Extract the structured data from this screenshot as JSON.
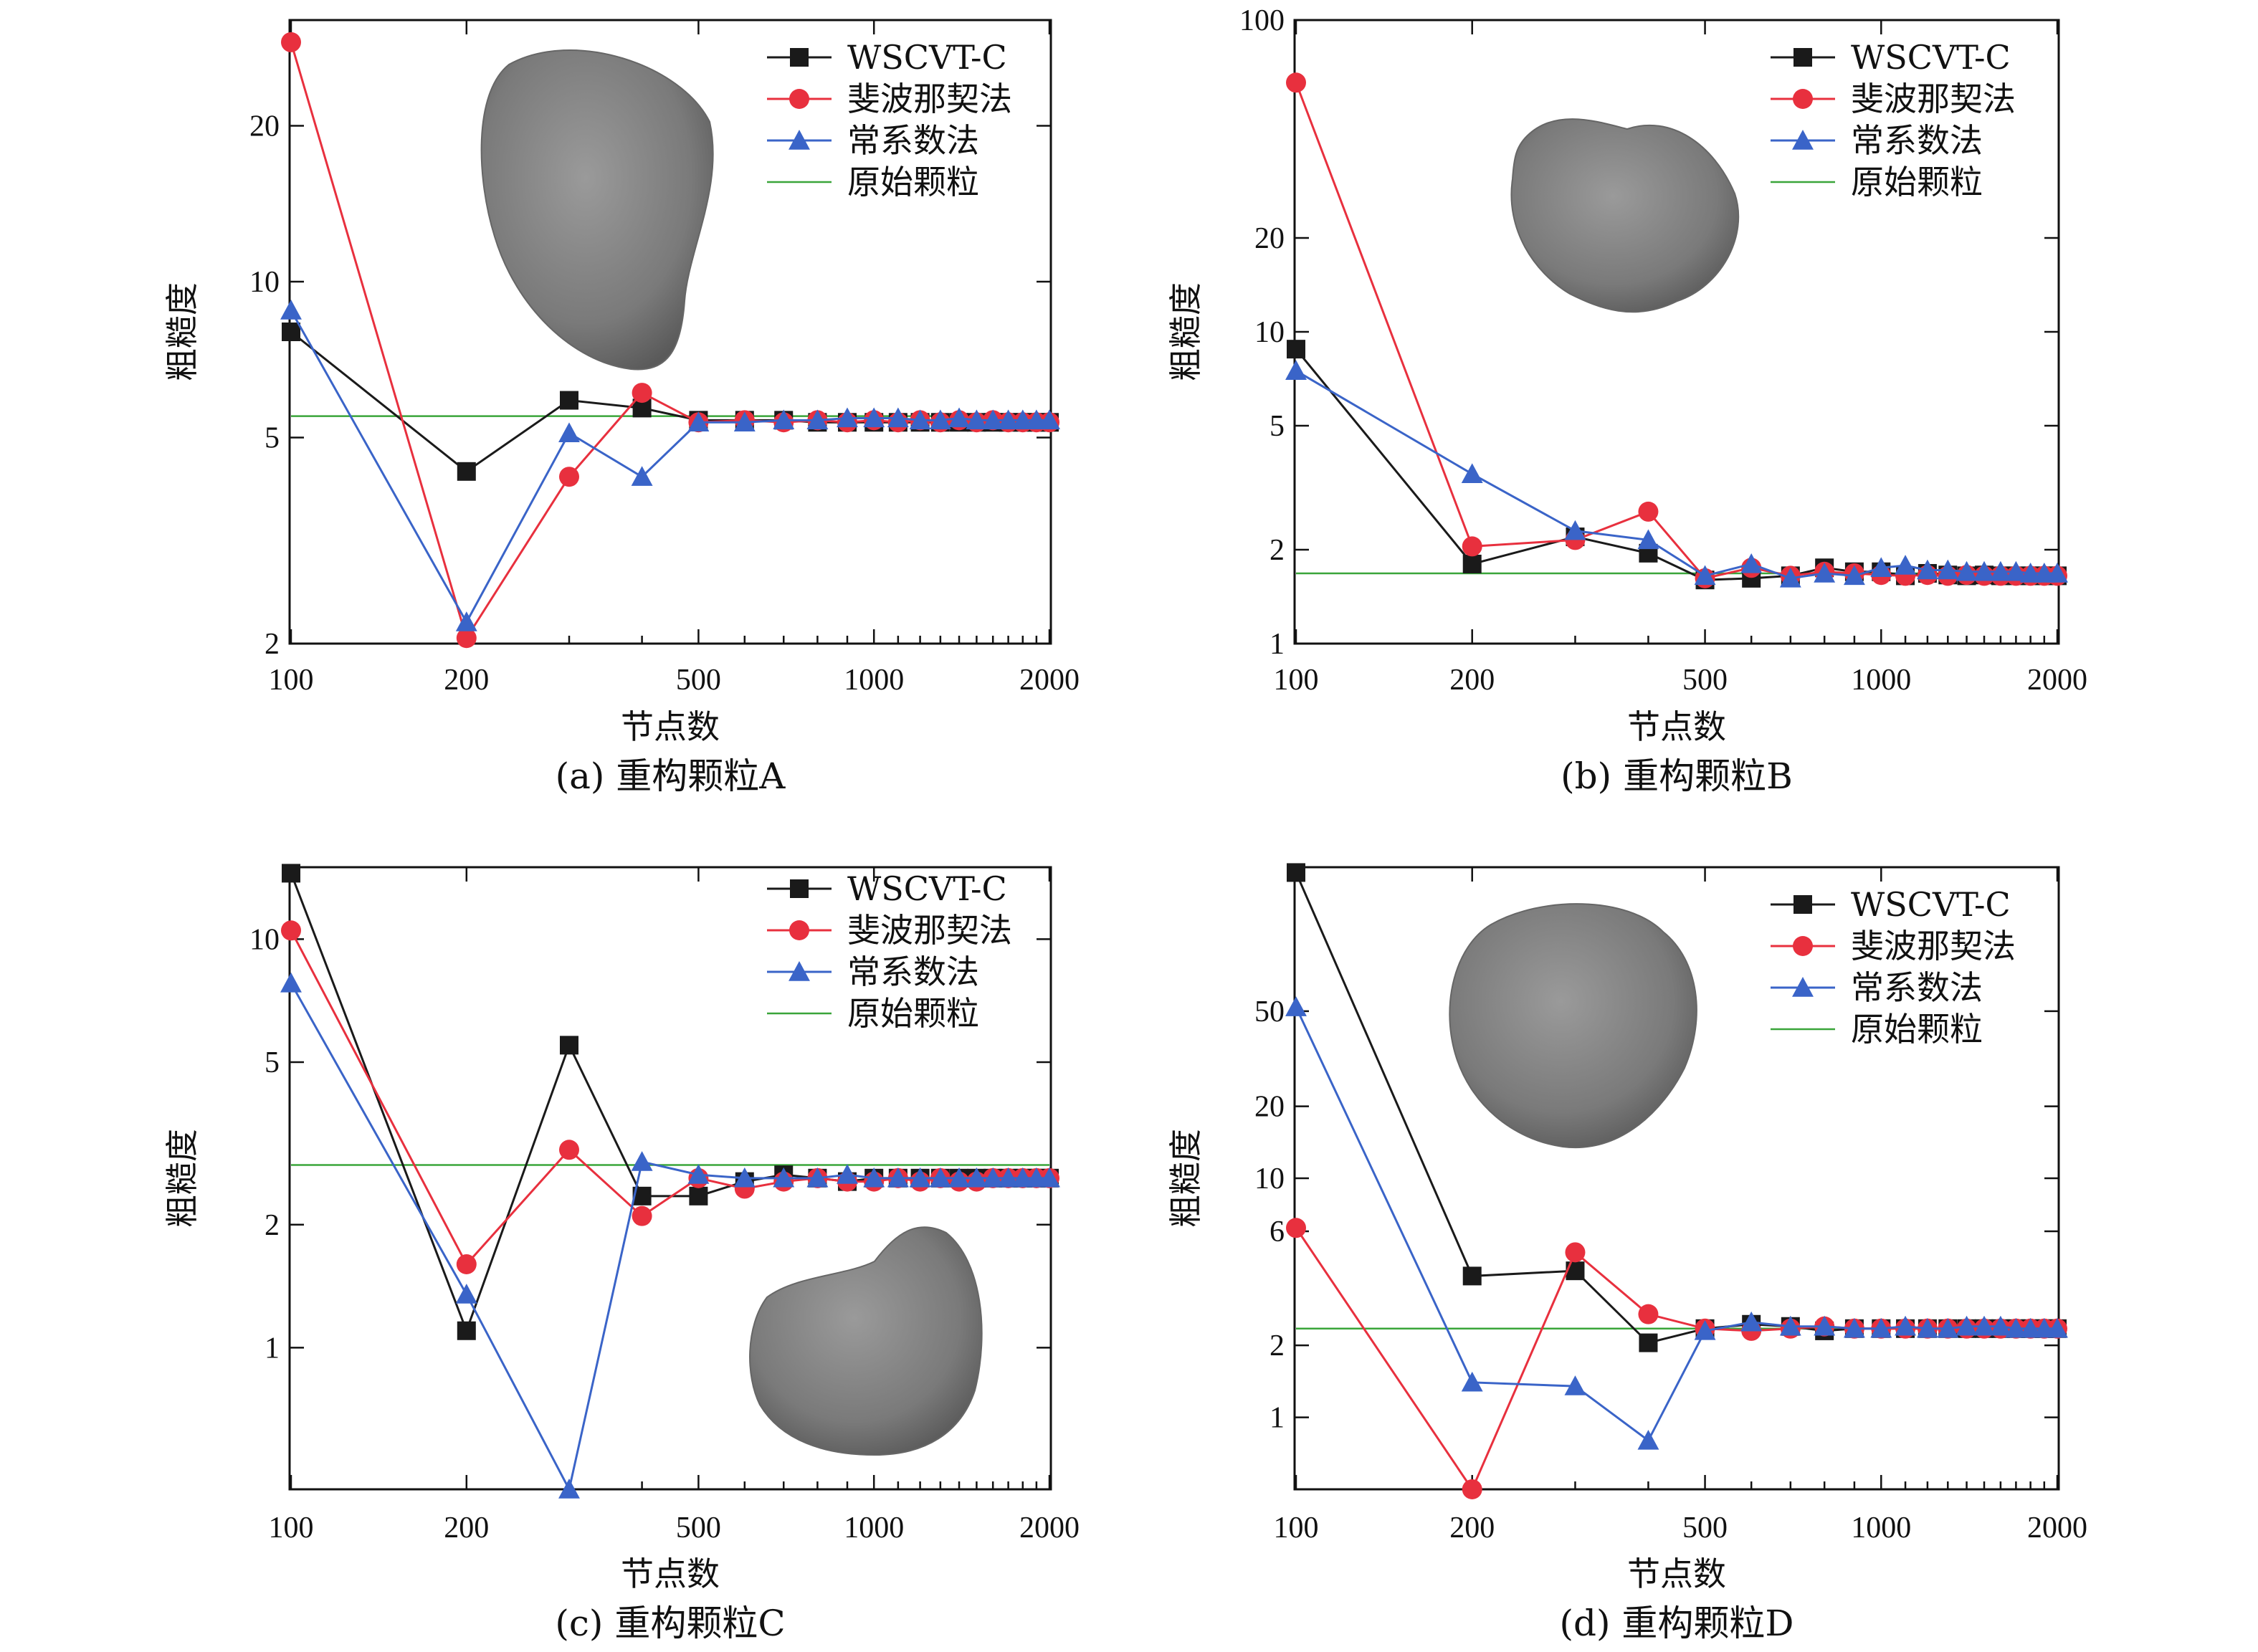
{
  "colors": {
    "wscvt": "#1a1a1a",
    "fibonacci": "#e8303e",
    "constant": "#3a64c8",
    "original": "#3aa53a",
    "particle": "#7a7a7a"
  },
  "chart_data": [
    {
      "type": "line",
      "caption": "(a) 重构颗粒A",
      "xlabel": "节点数",
      "ylabel": "粗糙度",
      "xscale": "log",
      "yscale": "log",
      "xlim": [
        100,
        2000
      ],
      "ylim": [
        2,
        32
      ],
      "xticks": [
        100,
        200,
        500,
        1000,
        2000
      ],
      "yticks": [
        2,
        5,
        10,
        20
      ],
      "legend_position": "top-right",
      "x": [
        100,
        200,
        300,
        400,
        500,
        600,
        700,
        800,
        900,
        1000,
        1100,
        1200,
        1300,
        1400,
        1500,
        1600,
        1700,
        1800,
        1900,
        2000
      ],
      "series": [
        {
          "name": "WSCVT-C",
          "marker": "square",
          "values": [
            8.0,
            4.3,
            5.9,
            5.7,
            5.4,
            5.4,
            5.4,
            5.35,
            5.35,
            5.35,
            5.35,
            5.35,
            5.35,
            5.35,
            5.35,
            5.35,
            5.35,
            5.35,
            5.35,
            5.35
          ]
        },
        {
          "name": "斐波那契法",
          "marker": "circle",
          "values": [
            29.0,
            2.05,
            4.2,
            6.1,
            5.35,
            5.4,
            5.35,
            5.4,
            5.35,
            5.4,
            5.35,
            5.4,
            5.35,
            5.4,
            5.35,
            5.4,
            5.35,
            5.35,
            5.35,
            5.35
          ]
        },
        {
          "name": "常系数法",
          "marker": "triangle",
          "values": [
            8.8,
            2.2,
            5.1,
            4.2,
            5.35,
            5.35,
            5.4,
            5.4,
            5.45,
            5.45,
            5.45,
            5.4,
            5.4,
            5.45,
            5.4,
            5.4,
            5.4,
            5.4,
            5.4,
            5.4
          ]
        },
        {
          "name": "原始颗粒",
          "marker": "none",
          "values": [
            5.5,
            5.5,
            5.5,
            5.5,
            5.5,
            5.5,
            5.5,
            5.5,
            5.5,
            5.5,
            5.5,
            5.5,
            5.5,
            5.5,
            5.5,
            5.5,
            5.5,
            5.5,
            5.5,
            5.5
          ]
        }
      ]
    },
    {
      "type": "line",
      "caption": "(b) 重构颗粒B",
      "xlabel": "节点数",
      "ylabel": "粗糙度",
      "xscale": "log",
      "yscale": "log",
      "xlim": [
        100,
        2000
      ],
      "ylim": [
        1,
        100
      ],
      "xticks": [
        100,
        200,
        500,
        1000,
        2000
      ],
      "yticks": [
        1,
        2,
        5,
        10,
        20,
        100
      ],
      "legend_position": "top-right",
      "x": [
        100,
        200,
        300,
        400,
        500,
        600,
        700,
        800,
        900,
        1000,
        1100,
        1200,
        1300,
        1400,
        1500,
        1600,
        1700,
        1800,
        1900,
        2000
      ],
      "series": [
        {
          "name": "WSCVT-C",
          "marker": "square",
          "values": [
            8.8,
            1.8,
            2.2,
            1.95,
            1.6,
            1.62,
            1.65,
            1.75,
            1.7,
            1.7,
            1.65,
            1.68,
            1.66,
            1.65,
            1.66,
            1.65,
            1.65,
            1.65,
            1.65,
            1.65
          ]
        },
        {
          "name": "斐波那契法",
          "marker": "circle",
          "values": [
            63.0,
            2.05,
            2.15,
            2.65,
            1.62,
            1.75,
            1.65,
            1.7,
            1.68,
            1.66,
            1.65,
            1.66,
            1.65,
            1.66,
            1.65,
            1.65,
            1.65,
            1.65,
            1.65,
            1.65
          ]
        },
        {
          "name": "常系数法",
          "marker": "triangle",
          "values": [
            7.5,
            3.5,
            2.3,
            2.15,
            1.65,
            1.8,
            1.62,
            1.68,
            1.65,
            1.75,
            1.78,
            1.72,
            1.72,
            1.7,
            1.7,
            1.7,
            1.7,
            1.68,
            1.68,
            1.68
          ]
        },
        {
          "name": "原始颗粒",
          "marker": "none",
          "values": [
            1.68,
            1.68,
            1.68,
            1.68,
            1.68,
            1.68,
            1.68,
            1.68,
            1.68,
            1.68,
            1.68,
            1.68,
            1.68,
            1.68,
            1.68,
            1.68,
            1.68,
            1.68,
            1.68,
            1.68
          ]
        }
      ]
    },
    {
      "type": "line",
      "caption": "(c) 重构颗粒C",
      "xlabel": "节点数",
      "ylabel": "粗糙度",
      "xscale": "log",
      "yscale": "log",
      "xlim": [
        100,
        2000
      ],
      "ylim": [
        0.45,
        15
      ],
      "xticks": [
        100,
        200,
        500,
        1000,
        2000
      ],
      "yticks": [
        1,
        2,
        5,
        10
      ],
      "legend_position": "top-right",
      "x": [
        100,
        200,
        300,
        400,
        500,
        600,
        700,
        800,
        900,
        1000,
        1100,
        1200,
        1300,
        1400,
        1500,
        1600,
        1700,
        1800,
        1900,
        2000
      ],
      "series": [
        {
          "name": "WSCVT-C",
          "marker": "square",
          "values": [
            14.5,
            1.1,
            5.5,
            2.35,
            2.35,
            2.55,
            2.65,
            2.6,
            2.55,
            2.6,
            2.6,
            2.6,
            2.6,
            2.6,
            2.6,
            2.6,
            2.6,
            2.6,
            2.6,
            2.6
          ]
        },
        {
          "name": "斐波那契法",
          "marker": "circle",
          "values": [
            10.5,
            1.6,
            3.05,
            2.1,
            2.6,
            2.45,
            2.55,
            2.6,
            2.55,
            2.55,
            2.6,
            2.55,
            2.6,
            2.55,
            2.55,
            2.6,
            2.6,
            2.6,
            2.6,
            2.6
          ]
        },
        {
          "name": "常系数法",
          "marker": "triangle",
          "values": [
            7.8,
            1.35,
            0.45,
            2.85,
            2.65,
            2.6,
            2.6,
            2.6,
            2.65,
            2.6,
            2.6,
            2.6,
            2.6,
            2.6,
            2.6,
            2.6,
            2.6,
            2.6,
            2.6,
            2.6
          ]
        },
        {
          "name": "原始颗粒",
          "marker": "none",
          "values": [
            2.8,
            2.8,
            2.8,
            2.8,
            2.8,
            2.8,
            2.8,
            2.8,
            2.8,
            2.8,
            2.8,
            2.8,
            2.8,
            2.8,
            2.8,
            2.8,
            2.8,
            2.8,
            2.8,
            2.8
          ]
        }
      ]
    },
    {
      "type": "line",
      "caption": "(d) 重构颗粒D",
      "xlabel": "节点数",
      "ylabel": "粗糙度",
      "xscale": "log",
      "yscale": "log",
      "xlim": [
        100,
        2000
      ],
      "ylim": [
        0.5,
        200
      ],
      "xticks": [
        100,
        200,
        500,
        1000,
        2000
      ],
      "yticks": [
        1,
        2,
        6,
        10,
        20,
        50
      ],
      "legend_position": "top-right",
      "x": [
        100,
        200,
        300,
        400,
        500,
        600,
        700,
        800,
        900,
        1000,
        1100,
        1200,
        1300,
        1400,
        1500,
        1600,
        1700,
        1800,
        1900,
        2000
      ],
      "series": [
        {
          "name": "WSCVT-C",
          "marker": "square",
          "values": [
            190,
            3.9,
            4.1,
            2.05,
            2.35,
            2.45,
            2.4,
            2.3,
            2.35,
            2.35,
            2.35,
            2.35,
            2.35,
            2.35,
            2.35,
            2.35,
            2.35,
            2.35,
            2.35,
            2.35
          ]
        },
        {
          "name": "斐波那契法",
          "marker": "circle",
          "values": [
            6.2,
            0.5,
            4.9,
            2.7,
            2.35,
            2.3,
            2.35,
            2.4,
            2.35,
            2.35,
            2.35,
            2.35,
            2.35,
            2.35,
            2.35,
            2.35,
            2.35,
            2.35,
            2.35,
            2.35
          ]
        },
        {
          "name": "常系数法",
          "marker": "triangle",
          "values": [
            52,
            1.4,
            1.35,
            0.8,
            2.3,
            2.5,
            2.4,
            2.4,
            2.35,
            2.35,
            2.4,
            2.35,
            2.35,
            2.4,
            2.4,
            2.4,
            2.35,
            2.35,
            2.35,
            2.35
          ]
        },
        {
          "name": "原始颗粒",
          "marker": "none",
          "values": [
            2.35,
            2.35,
            2.35,
            2.35,
            2.35,
            2.35,
            2.35,
            2.35,
            2.35,
            2.35,
            2.35,
            2.35,
            2.35,
            2.35,
            2.35,
            2.35,
            2.35,
            2.35,
            2.35,
            2.35
          ]
        }
      ]
    }
  ]
}
